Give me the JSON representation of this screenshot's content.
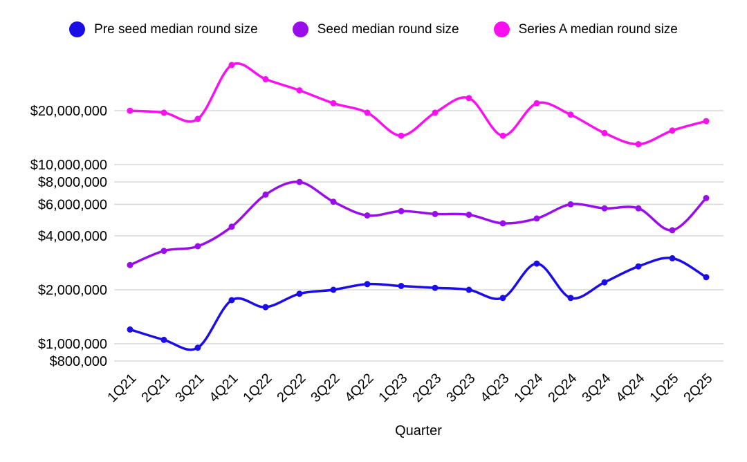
{
  "chart_data": {
    "type": "line",
    "title": "",
    "legend_position": "top",
    "grid": true,
    "background_color": "#ffffff",
    "grid_color": "#d9d9d9",
    "text_color": "#000000",
    "x_axis": {
      "title": "Quarter",
      "categories": [
        "1Q21",
        "2Q21",
        "3Q21",
        "4Q21",
        "1Q22",
        "2Q22",
        "3Q22",
        "4Q22",
        "1Q23",
        "2Q23",
        "3Q23",
        "4Q23",
        "1Q24",
        "2Q24",
        "3Q24",
        "4Q24",
        "1Q25",
        "2Q25"
      ]
    },
    "y_axis": {
      "scale": "log",
      "ticks": [
        {
          "value": 20000000,
          "label": "$20,000,000"
        },
        {
          "value": 10000000,
          "label": "$10,000,000"
        },
        {
          "value": 8000000,
          "label": "$8,000,000"
        },
        {
          "value": 6000000,
          "label": "$6,000,000"
        },
        {
          "value": 4000000,
          "label": "$4,000,000"
        },
        {
          "value": 2000000,
          "label": "$2,000,000"
        },
        {
          "value": 1000000,
          "label": "$1,000,000"
        },
        {
          "value": 800000,
          "label": "$800,000"
        }
      ]
    },
    "series": [
      {
        "name": "Pre seed median round size",
        "color": "#1a0de8",
        "values": [
          1200000,
          1050000,
          950000,
          1750000,
          1600000,
          1900000,
          2000000,
          2150000,
          2100000,
          2050000,
          2000000,
          1800000,
          2800000,
          1800000,
          2200000,
          2700000,
          3000000,
          2350000
        ]
      },
      {
        "name": "Seed median round size",
        "color": "#9a0deb",
        "values": [
          2750000,
          3300000,
          3500000,
          4500000,
          6800000,
          8000000,
          6200000,
          5200000,
          5500000,
          5300000,
          5250000,
          4700000,
          5000000,
          6000000,
          5700000,
          5700000,
          4300000,
          6500000
        ]
      },
      {
        "name": "Series A median round size",
        "color": "#fa0ff0",
        "values": [
          20000000,
          19500000,
          18000000,
          36000000,
          30000000,
          26000000,
          22000000,
          19500000,
          14500000,
          19500000,
          23500000,
          14500000,
          22000000,
          19000000,
          15000000,
          13000000,
          15500000,
          17500000
        ]
      }
    ]
  }
}
